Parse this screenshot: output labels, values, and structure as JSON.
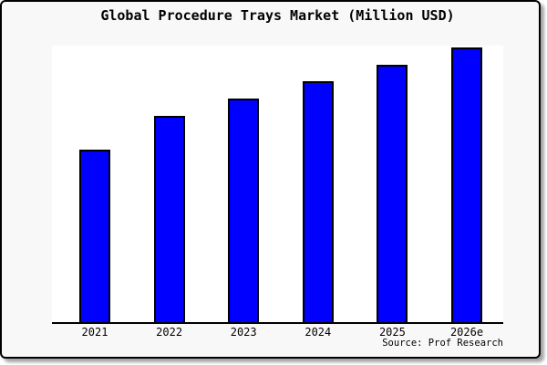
{
  "window": {
    "background_color": "#f8f8f8",
    "border_color": "#000000",
    "plot_background_color": "#ffffff"
  },
  "chart_data": {
    "type": "bar",
    "title": "Global Procedure Trays Market (Million USD)",
    "categories": [
      "2021",
      "2022",
      "2023",
      "2024",
      "2025",
      "2026e"
    ],
    "values": [
      189,
      226,
      245,
      264,
      282,
      301
    ],
    "unit": "relative height (no y-axis scale shown in chart)",
    "xlabel": "",
    "ylabel": "",
    "ylim": [
      0,
      303
    ],
    "grid": false,
    "legend": false,
    "bar_color": "#0000ff",
    "bar_border_color": "#000000",
    "axis_color": "#000000"
  },
  "source": {
    "text": "Source: Prof Research"
  }
}
